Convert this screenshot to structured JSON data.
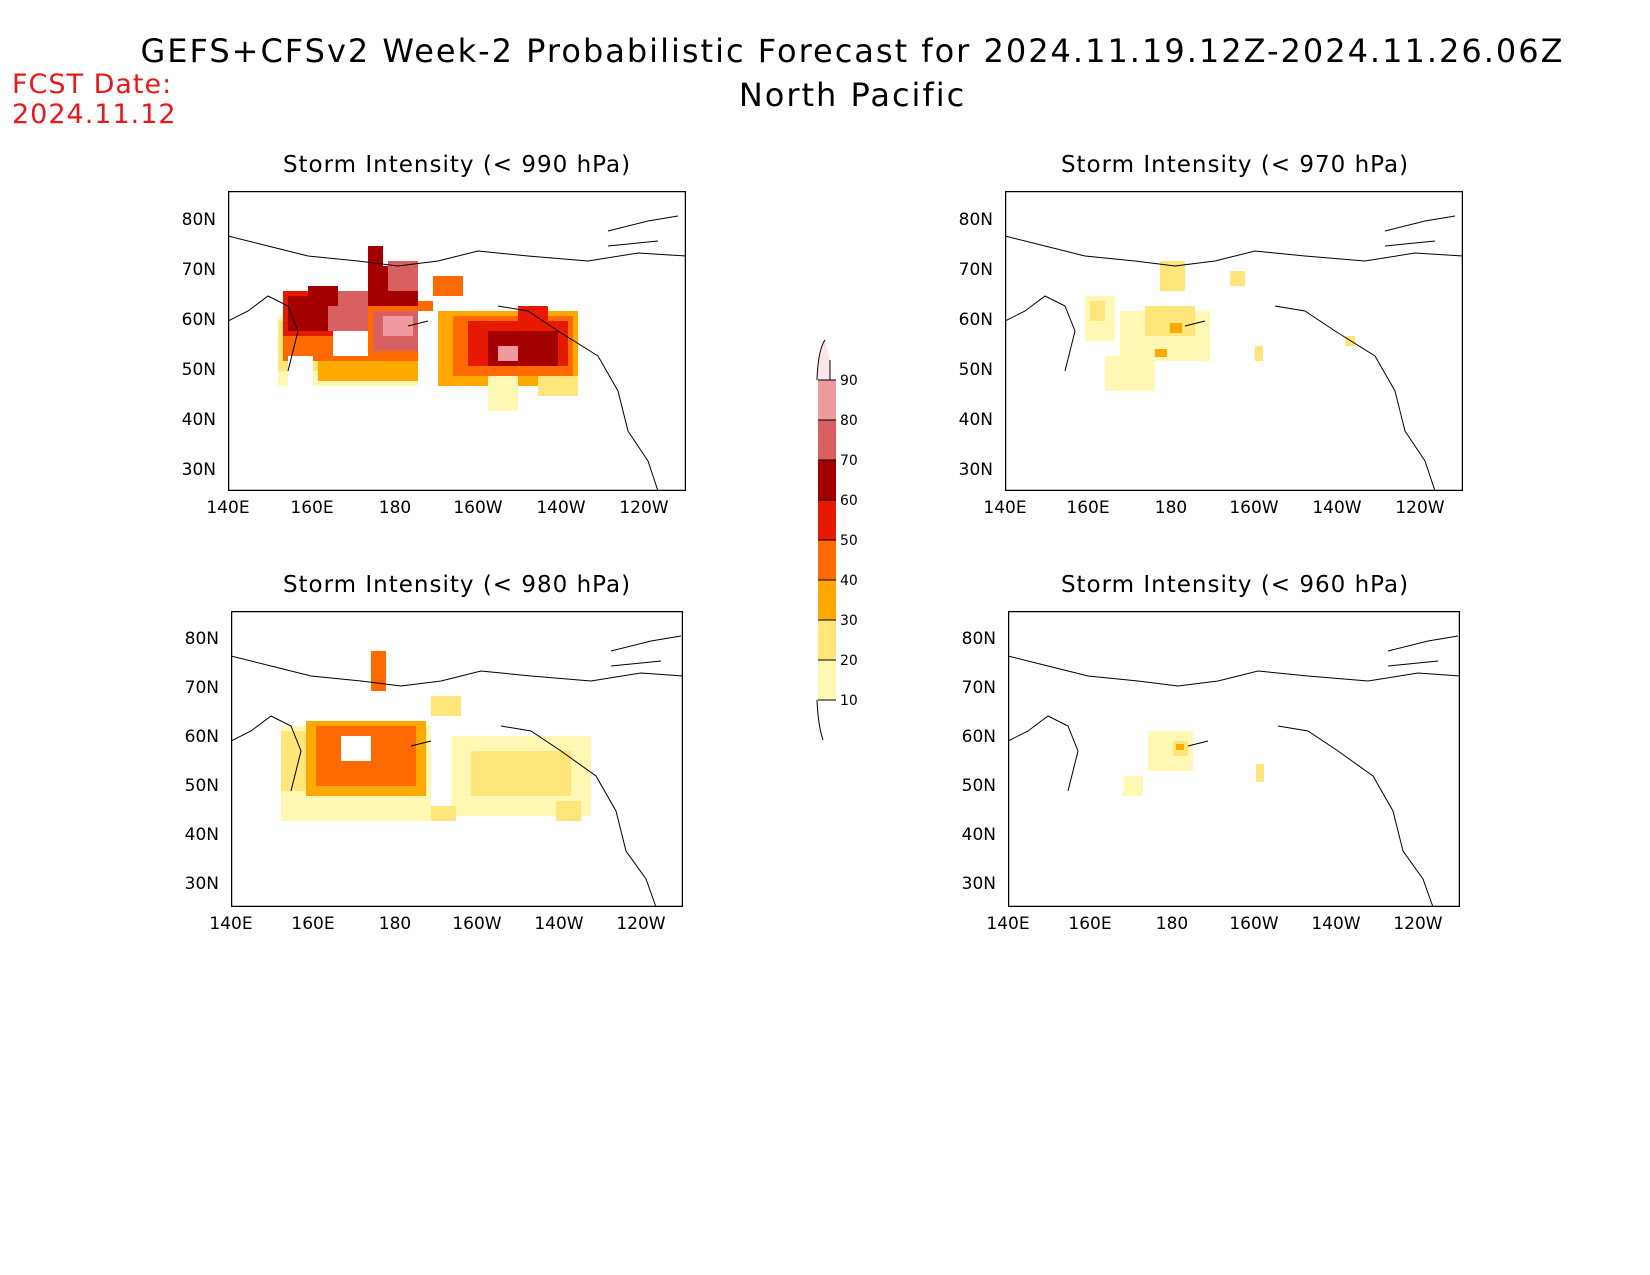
{
  "title": "GEFS+CFSv2 Week-2 Probabilistic Forecast for 2024.11.19.12Z-2024.11.26.06Z",
  "subtitle": "North Pacific",
  "fcst_label": "FCST Date:",
  "fcst_date": "2024.11.12",
  "colors": {
    "c10": "#fff8b4",
    "c20": "#ffe57a",
    "c30": "#ffa800",
    "c40": "#ff6a00",
    "c50": "#e61a00",
    "c60": "#a50000",
    "c70": "#d96060",
    "c80": "#f09aa0",
    "c90": "#fde6ea"
  },
  "colorbar": {
    "labels": [
      "90",
      "80",
      "70",
      "60",
      "50",
      "40",
      "30",
      "20",
      "10"
    ]
  },
  "lat_labels": [
    "80N",
    "70N",
    "60N",
    "50N",
    "40N",
    "30N"
  ],
  "lon_labels": [
    "140E",
    "160E",
    "180",
    "160W",
    "140W",
    "120W"
  ],
  "panels": [
    {
      "title": "Storm Intensity (< 990 hPa)"
    },
    {
      "title": "Storm Intensity (< 970 hPa)"
    },
    {
      "title": "Storm Intensity (< 980 hPa)"
    },
    {
      "title": "Storm Intensity (< 960 hPa)"
    }
  ]
}
